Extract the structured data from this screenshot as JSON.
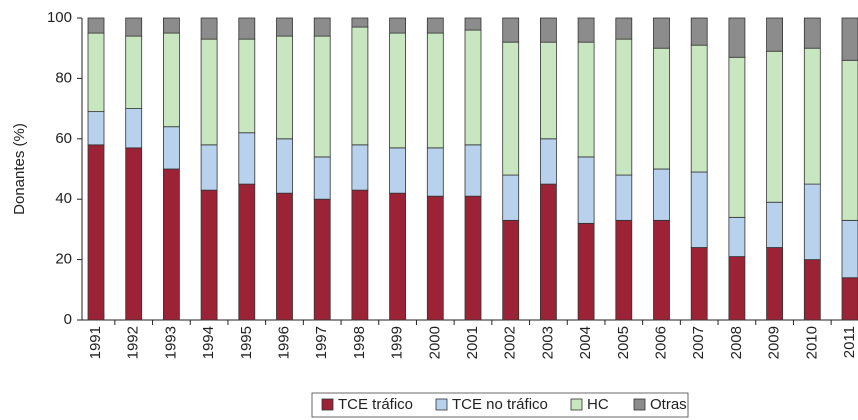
{
  "chart_data": {
    "type": "stacked_bar",
    "y_label": "Donantes (%)",
    "categories": [
      "1991",
      "1992",
      "1993",
      "1994",
      "1995",
      "1996",
      "1997",
      "1998",
      "1999",
      "2000",
      "2001",
      "2002",
      "2003",
      "2004",
      "2005",
      "2006",
      "2007",
      "2008",
      "2009",
      "2010",
      "2011"
    ],
    "series": [
      {
        "name": "TCE tráfico",
        "color": "#9b2335",
        "values": [
          58,
          57,
          50,
          43,
          45,
          42,
          40,
          43,
          42,
          41,
          41,
          33,
          45,
          32,
          33,
          33,
          24,
          21,
          24,
          20,
          14
        ]
      },
      {
        "name": "TCE no tráfico",
        "color": "#b8d1ec",
        "values": [
          11,
          13,
          14,
          15,
          17,
          18,
          14,
          15,
          15,
          16,
          17,
          15,
          15,
          22,
          15,
          17,
          25,
          13,
          15,
          25,
          19
        ]
      },
      {
        "name": "HC",
        "color": "#c8e6c0",
        "values": [
          26,
          24,
          31,
          35,
          31,
          34,
          40,
          39,
          38,
          38,
          38,
          44,
          32,
          38,
          45,
          40,
          42,
          53,
          50,
          45,
          53
        ]
      },
      {
        "name": "Otras",
        "color": "#8c8c8c",
        "values": [
          5,
          6,
          5,
          7,
          7,
          6,
          6,
          3,
          5,
          5,
          4,
          8,
          8,
          8,
          7,
          10,
          9,
          13,
          11,
          10,
          14
        ]
      }
    ],
    "ylim": [
      0,
      100
    ],
    "yticks": [
      0,
      20,
      40,
      60,
      80,
      100
    ],
    "grid": false,
    "legend": "bottom"
  }
}
